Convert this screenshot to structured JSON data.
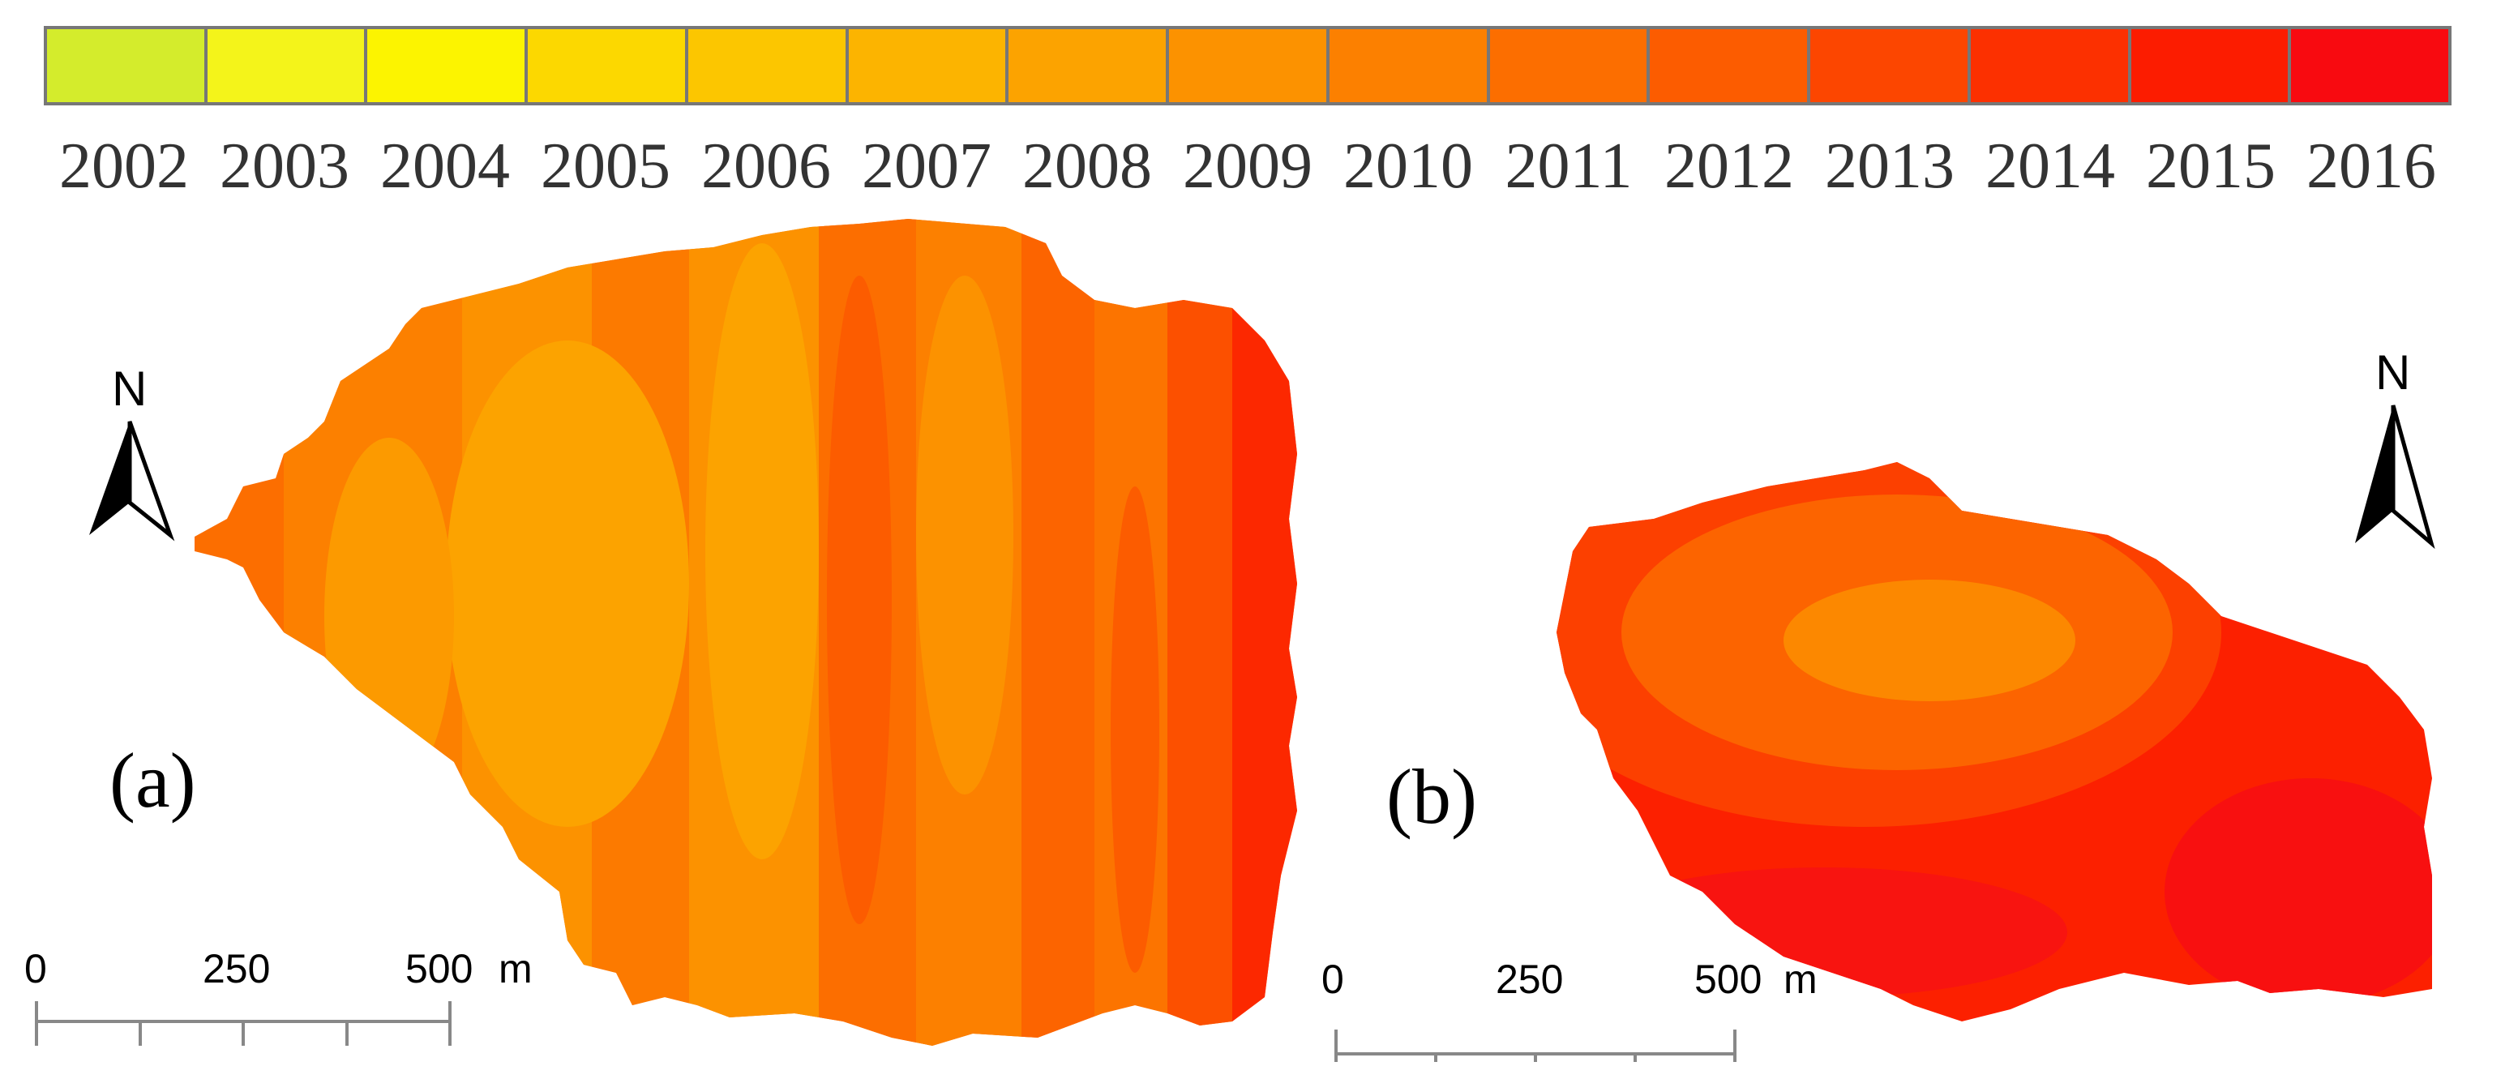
{
  "legend": {
    "years": [
      "2002",
      "2003",
      "2004",
      "2005",
      "2006",
      "2007",
      "2008",
      "2009",
      "2010",
      "2011",
      "2012",
      "2013",
      "2014",
      "2015",
      "2016"
    ],
    "colors": [
      "#d4ec2c",
      "#f4f41a",
      "#fcf400",
      "#fcd800",
      "#fcc600",
      "#fcb400",
      "#fca300",
      "#fc9200",
      "#fc8000",
      "#fc6e00",
      "#fc5c00",
      "#fc4600",
      "#fc3000",
      "#fc1c00",
      "#f80a10"
    ]
  },
  "panels": {
    "a": {
      "label": "(a)",
      "north": "N",
      "scale": [
        "0",
        "250",
        "500"
      ],
      "scale_unit": "m"
    },
    "b": {
      "label": "(b)",
      "north": "N",
      "scale": [
        "0",
        "250",
        "500"
      ],
      "scale_unit": "m"
    }
  }
}
